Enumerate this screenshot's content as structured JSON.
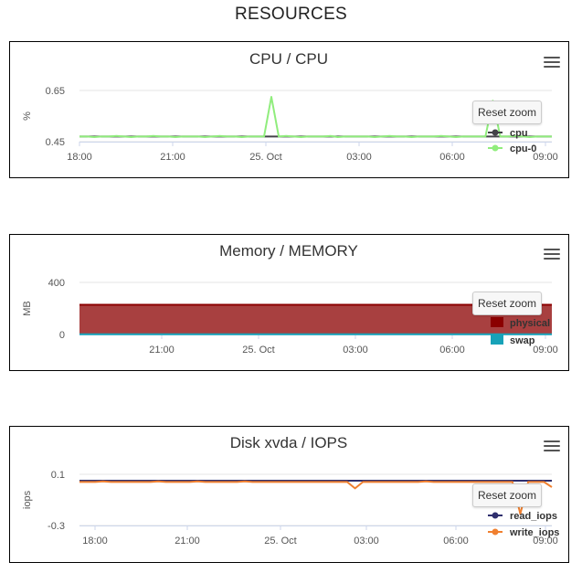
{
  "page": {
    "title": "RESOURCES"
  },
  "reset_label": "Reset zoom",
  "x_ticks": [
    "18:00",
    "21:00",
    "25. Oct",
    "03:00",
    "06:00",
    "09:00"
  ],
  "chart_data": [
    {
      "type": "line",
      "title": "CPU / CPU",
      "ylabel": "%",
      "ytick_labels": [
        "0.65",
        "0.45"
      ],
      "ylim": [
        0.45,
        0.65
      ],
      "x_ticks": [
        "18:00",
        "21:00",
        "25. Oct",
        "03:00",
        "06:00",
        "09:00"
      ],
      "xlim": [
        0,
        16
      ],
      "legend": "bottom-right",
      "series": [
        {
          "name": "cpu",
          "color": "#434348",
          "values": [
            0.47,
            0.47,
            0.47,
            0.47,
            0.47,
            0.47,
            0.47,
            0.47,
            0.47,
            0.47,
            0.47,
            0.47,
            0.47,
            0.47,
            0.47,
            0.47,
            0.47,
            0.47,
            0.47,
            0.47,
            0.47,
            0.47,
            0.47,
            0.47,
            0.47,
            0.47,
            0.47,
            0.47,
            0.47,
            0.47,
            0.47,
            0.47,
            0.47,
            0.47,
            0.47,
            0.47,
            0.47,
            0.47,
            0.47,
            0.47,
            0.47,
            0.47,
            0.47,
            0.47,
            0.47,
            0.47,
            0.47,
            0.47,
            0.47,
            0.47,
            0.47,
            0.47,
            0.47,
            0.47,
            0.47,
            0.47,
            0.47,
            0.47,
            0.47,
            0.47,
            0.47,
            0.47,
            0.47,
            0.47,
            0.47
          ]
        },
        {
          "name": "cpu-0",
          "color": "#90ed7d",
          "values": [
            0.47,
            0.47,
            0.468,
            0.47,
            0.47,
            0.472,
            0.47,
            0.468,
            0.47,
            0.47,
            0.472,
            0.47,
            0.47,
            0.468,
            0.47,
            0.47,
            0.47,
            0.468,
            0.47,
            0.472,
            0.47,
            0.47,
            0.468,
            0.47,
            0.47,
            0.47,
            0.625,
            0.47,
            0.472,
            0.47,
            0.468,
            0.47,
            0.47,
            0.47,
            0.472,
            0.468,
            0.47,
            0.47,
            0.47,
            0.47,
            0.468,
            0.47,
            0.472,
            0.47,
            0.47,
            0.468,
            0.47,
            0.47,
            0.47,
            0.472,
            0.47,
            0.468,
            0.47,
            0.47,
            0.47,
            0.47,
            0.61,
            0.47,
            0.47,
            0.472,
            0.47,
            0.468,
            0.47,
            0.47,
            0.47
          ]
        }
      ]
    },
    {
      "type": "area",
      "title": "Memory / MEMORY",
      "ylabel": "MB",
      "ytick_labels": [
        "400",
        "0"
      ],
      "ylim": [
        0,
        400
      ],
      "x_ticks": [
        "21:00",
        "25. Oct",
        "03:00",
        "06:00",
        "09:00"
      ],
      "xlim": [
        0,
        16
      ],
      "legend": "bottom-right",
      "series": [
        {
          "name": "physical",
          "color": "#8b0000",
          "values": [
            228,
            228
          ]
        },
        {
          "name": "swap",
          "color": "#17a2b8",
          "values": [
            2,
            2
          ]
        }
      ]
    },
    {
      "type": "line",
      "title": "Disk xvda / IOPS",
      "ylabel": "iops",
      "ytick_labels": [
        "0.1",
        "-0.3"
      ],
      "ylim": [
        -0.3,
        0.1
      ],
      "x_ticks": [
        "18:00",
        "21:00",
        "25. Oct",
        "03:00",
        "06:00",
        "09:00"
      ],
      "xlim": [
        0,
        16
      ],
      "legend": "bottom-right",
      "series": [
        {
          "name": "read_iops",
          "color": "#2f2f6e",
          "values": [
            0.05,
            0.05,
            0.05,
            0.05,
            0.05,
            0.05,
            0.05,
            0.05,
            0.05,
            0.05,
            0.05,
            0.05,
            0.05,
            0.05,
            0.05,
            0.05,
            0.05,
            0.05,
            0.05,
            0.05,
            0.05,
            0.05,
            0.05,
            0.05,
            0.05,
            0.05,
            0.05,
            0.05,
            0.05,
            0.05,
            0.05,
            0.05,
            0.05,
            0.05,
            0.05,
            0.05,
            0.05,
            0.05,
            0.05,
            0.05,
            0.05,
            0.05,
            0.05,
            0.05,
            0.05,
            0.05,
            0.05,
            0.05,
            0.05,
            0.05,
            0.05,
            0.05,
            0.05,
            0.05,
            0.05,
            0.05,
            0.05,
            0.05,
            0.05,
            0.05,
            0.05
          ]
        },
        {
          "name": "write_iops",
          "color": "#f08030",
          "values": [
            0.04,
            0.04,
            0.04,
            0.045,
            0.04,
            0.04,
            0.04,
            0.04,
            0.04,
            0.04,
            0.045,
            0.04,
            0.04,
            0.04,
            0.04,
            0.045,
            0.04,
            0.04,
            0.04,
            0.04,
            0.04,
            0.045,
            0.04,
            0.04,
            0.04,
            0.04,
            0.04,
            0.04,
            0.04,
            0.04,
            0.04,
            0.04,
            0.04,
            0.04,
            0.04,
            -0.01,
            0.04,
            0.04,
            0.04,
            0.04,
            0.04,
            0.04,
            0.04,
            0.04,
            0.045,
            0.04,
            0.04,
            0.04,
            0.04,
            0.04,
            0.04,
            0.04,
            0.04,
            0.04,
            0.04,
            0.04,
            -0.21,
            0.04,
            0.04,
            0.04,
            0.0
          ]
        }
      ]
    }
  ]
}
